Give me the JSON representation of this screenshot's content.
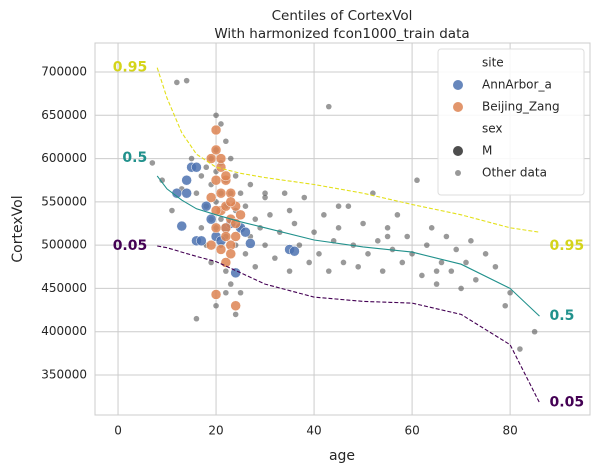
{
  "chart_data": {
    "type": "scatter",
    "title": "Centiles of CortexVol",
    "subtitle": "With harmonized fcon1000_train data",
    "x_label": "age",
    "y_label": "CortexVol",
    "xlim": [
      -4.7,
      96.3
    ],
    "ylim": [
      303800,
      733500
    ],
    "xticks": [
      0,
      20,
      40,
      60,
      80
    ],
    "yticks": [
      350000,
      400000,
      450000,
      500000,
      550000,
      600000,
      650000,
      700000
    ],
    "grid": true,
    "legend_loc": "upper right",
    "legend_titles": [
      "site",
      "sex"
    ],
    "sex_entries": [
      {
        "name": "M",
        "color": "#4d4d4d"
      }
    ],
    "series": [
      {
        "name": "Other data",
        "color": "#555555",
        "x": [
          7,
          9,
          12,
          14,
          15,
          16,
          17,
          17,
          18,
          18,
          18,
          19,
          19,
          19,
          19,
          20,
          20,
          20,
          20,
          20,
          21,
          21,
          21,
          21,
          21,
          22,
          22,
          22,
          22,
          22,
          23,
          23,
          23,
          23,
          24,
          24,
          24,
          25,
          25,
          25,
          26,
          26,
          27,
          27,
          28,
          28,
          29,
          30,
          30,
          31,
          32,
          33,
          34,
          35,
          35,
          36,
          37,
          38,
          39,
          40,
          41,
          42,
          43,
          43,
          44,
          45,
          46,
          47,
          48,
          49,
          50,
          51,
          52,
          53,
          54,
          55,
          56,
          57,
          58,
          59,
          60,
          61,
          62,
          63,
          64,
          65,
          66,
          67,
          68,
          69,
          70,
          71,
          72,
          73,
          75,
          77,
          79,
          80,
          82,
          85,
          11,
          13,
          16,
          20,
          22,
          24,
          30,
          45,
          55,
          65
        ],
        "values": [
          595000,
          575000,
          688000,
          690000,
          600000,
          560000,
          580000,
          520000,
          590000,
          545000,
          500000,
          600000,
          570000,
          530000,
          480000,
          650000,
          610000,
          585000,
          550000,
          520000,
          640000,
          595000,
          560000,
          530000,
          500000,
          620000,
          575000,
          545000,
          510000,
          470000,
          600000,
          560000,
          525000,
          455000,
          580000,
          540000,
          500000,
          560000,
          520000,
          445000,
          545000,
          490000,
          570000,
          510000,
          530000,
          475000,
          520000,
          555000,
          500000,
          535000,
          485000,
          515000,
          560000,
          540000,
          470000,
          525000,
          500000,
          555000,
          480000,
          515000,
          490000,
          535000,
          660000,
          470000,
          505000,
          520000,
          480000,
          545000,
          500000,
          475000,
          525000,
          490000,
          560000,
          505000,
          470000,
          520000,
          495000,
          535000,
          480000,
          510000,
          490000,
          575000,
          465000,
          500000,
          520000,
          455000,
          480000,
          510000,
          470000,
          495000,
          450000,
          480000,
          505000,
          460000,
          490000,
          475000,
          430000,
          445000,
          380000,
          400000,
          540000,
          565000,
          415000,
          430000,
          445000,
          420000,
          560000,
          545000,
          510000,
          470000
        ]
      },
      {
        "name": "AnnArbor_a",
        "color": "#4c72b0",
        "x": [
          13,
          14,
          15,
          14,
          16,
          17,
          18,
          19,
          20,
          22,
          24,
          25,
          26,
          27,
          35,
          36,
          16,
          12,
          21,
          23
        ],
        "values": [
          522000,
          575000,
          590000,
          560000,
          505000,
          505000,
          545000,
          530000,
          510000,
          520000,
          468000,
          520000,
          515000,
          502000,
          495000,
          493000,
          590000,
          560000,
          505000,
          525000
        ]
      },
      {
        "name": "Beijing_Zang",
        "color": "#dd8452",
        "x": [
          19,
          20,
          20,
          20,
          21,
          21,
          21,
          22,
          22,
          22,
          23,
          23,
          23,
          24,
          24,
          19,
          20,
          21,
          22,
          20,
          21,
          22,
          23,
          24,
          20,
          22,
          23,
          24,
          25,
          19
        ],
        "values": [
          600000,
          633000,
          610000,
          575000,
          590000,
          560000,
          540000,
          575000,
          545000,
          520000,
          560000,
          530000,
          500000,
          545000,
          510000,
          555000,
          443000,
          495000,
          480000,
          520000,
          600000,
          510000,
          490000,
          430000,
          540000,
          580000,
          550000,
          525000,
          535000,
          500000
        ]
      }
    ],
    "centiles": [
      {
        "name": "0.95",
        "color": "#e3e01a",
        "x": [
          8,
          10,
          13,
          16,
          20,
          25,
          30,
          40,
          50,
          60,
          70,
          80,
          86
        ],
        "values": [
          705000,
          670000,
          630000,
          605000,
          590000,
          583000,
          578000,
          570000,
          560000,
          547000,
          535000,
          520000,
          515000
        ]
      },
      {
        "name": "0.5",
        "color": "#21918c",
        "x": [
          8,
          10,
          13,
          16,
          20,
          25,
          30,
          40,
          50,
          60,
          70,
          80,
          86
        ],
        "values": [
          580000,
          565000,
          552000,
          542000,
          535000,
          527000,
          520000,
          506000,
          498000,
          492000,
          478000,
          450000,
          418000
        ]
      },
      {
        "name": "0.05",
        "color": "#440154",
        "x": [
          8,
          10,
          13,
          16,
          20,
          25,
          30,
          40,
          50,
          60,
          70,
          80,
          86
        ],
        "values": [
          499000,
          497000,
          492000,
          487000,
          481000,
          468000,
          455000,
          440000,
          435000,
          433000,
          420000,
          385000,
          318000
        ]
      }
    ]
  }
}
